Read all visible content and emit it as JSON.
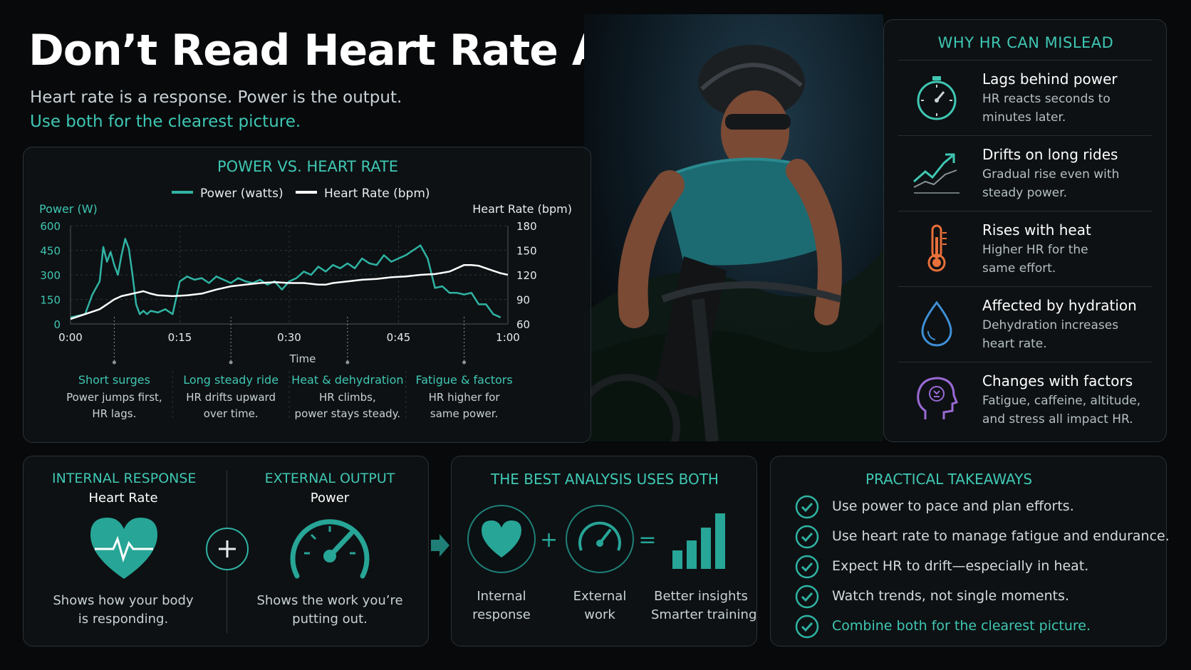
{
  "header": {
    "title": "Don’t Read Heart Rate Alone",
    "subtitle1": "Heart rate is a response. Power is the output.",
    "subtitle2": "Use both for the clearest picture."
  },
  "colors": {
    "accent": "#3fc7b4",
    "power_line": "#2fb3a4",
    "hr_line": "#ffffff",
    "heat": "#e8703a",
    "hydration": "#3f8fd6",
    "factors": "#9a6ad6"
  },
  "chart_data": {
    "type": "line",
    "title": "POWER VS. HEART RATE",
    "xlabel": "Time",
    "ylabel_left": "Power (W)",
    "ylabel_right": "Heart Rate (bpm)",
    "x_ticks": [
      "0:00",
      "0:15",
      "0:30",
      "0:45",
      "1:00"
    ],
    "y_left_ticks": [
      "600",
      "450",
      "300",
      "150",
      "0"
    ],
    "y_right_ticks": [
      "180",
      "150",
      "120",
      "90",
      "60"
    ],
    "ylim_left": [
      0,
      600
    ],
    "ylim_right": [
      60,
      180
    ],
    "xlim": [
      0,
      60
    ],
    "legend_placement": "top-center",
    "series": [
      {
        "name": "Power (watts)",
        "axis": "left",
        "x": [
          0,
          2,
          3,
          4,
          4.5,
          5,
          5.5,
          6,
          6.5,
          7,
          7.5,
          8,
          8.5,
          9,
          9.5,
          10,
          10.5,
          11,
          12,
          13,
          14,
          15,
          16,
          17,
          18,
          19,
          20,
          21,
          22,
          23,
          24,
          25,
          26,
          27,
          28,
          29,
          30,
          31,
          32,
          33,
          34,
          35,
          36,
          37,
          38,
          39,
          40,
          41,
          42,
          43,
          44,
          45,
          46,
          47,
          48,
          49,
          50,
          51,
          52,
          53,
          54,
          55,
          56,
          57,
          58,
          59
        ],
        "values": [
          40,
          60,
          180,
          260,
          470,
          380,
          440,
          360,
          300,
          420,
          520,
          460,
          300,
          120,
          60,
          80,
          60,
          80,
          70,
          90,
          60,
          260,
          290,
          270,
          280,
          250,
          290,
          270,
          250,
          280,
          260,
          250,
          270,
          240,
          260,
          210,
          260,
          280,
          320,
          300,
          350,
          320,
          360,
          340,
          370,
          340,
          400,
          370,
          360,
          420,
          380,
          400,
          420,
          450,
          480,
          400,
          220,
          230,
          190,
          190,
          180,
          190,
          120,
          120,
          60,
          40
        ]
      },
      {
        "name": "Heart Rate (bpm)",
        "axis": "right",
        "x": [
          0,
          2,
          4,
          5,
          6,
          7,
          8,
          9,
          10,
          11,
          12,
          14,
          16,
          18,
          20,
          22,
          24,
          26,
          28,
          30,
          32,
          34,
          35,
          36,
          38,
          40,
          42,
          44,
          46,
          48,
          50,
          52,
          53,
          54,
          55,
          56,
          57,
          58,
          59,
          60
        ],
        "values": [
          66,
          72,
          78,
          84,
          90,
          94,
          96,
          98,
          100,
          97,
          95,
          94,
          95,
          97,
          102,
          106,
          108,
          110,
          111,
          110,
          110,
          108,
          108,
          110,
          112,
          114,
          115,
          117,
          118,
          120,
          121,
          124,
          128,
          132,
          132,
          131,
          128,
          125,
          122,
          120
        ]
      }
    ],
    "annotations": [
      {
        "x": 6,
        "title": "Short surges",
        "line1": "Power jumps first,",
        "line2": "HR lags."
      },
      {
        "x": 22,
        "title": "Long steady ride",
        "line1": "HR drifts upward",
        "line2": "over time."
      },
      {
        "x": 38,
        "title": "Heat & dehydration",
        "line1": "HR climbs,",
        "line2": "power stays steady."
      },
      {
        "x": 54,
        "title": "Fatigue & factors",
        "line1": "HR higher for",
        "line2": "same power."
      }
    ]
  },
  "hr_panel": {
    "title": "WHY HR CAN MISLEAD",
    "items": [
      {
        "icon": "stopwatch-icon",
        "heading": "Lags behind power",
        "line1": "HR reacts seconds to",
        "line2": "minutes later."
      },
      {
        "icon": "trend-up-icon",
        "heading": "Drifts on long rides",
        "line1": "Gradual rise even with",
        "line2": "steady power."
      },
      {
        "icon": "thermometer-icon",
        "heading": "Rises with heat",
        "line1": "Higher HR for the",
        "line2": "same effort."
      },
      {
        "icon": "water-drop-icon",
        "heading": "Affected by hydration",
        "line1": "Dehydration increases",
        "line2": "heart rate."
      },
      {
        "icon": "head-brain-icon",
        "heading": "Changes with factors",
        "line1": "Fatigue, caffeine, altitude,",
        "line2": "and stress all impact HR."
      }
    ]
  },
  "io_panel": {
    "internal_title": "INTERNAL RESPONSE",
    "internal_sub": "Heart Rate",
    "internal_line1": "Shows how your body",
    "internal_line2": "is responding.",
    "external_title": "EXTERNAL OUTPUT",
    "external_sub": "Power",
    "external_line1": "Shows the work you’re",
    "external_line2": "putting out."
  },
  "both_panel": {
    "title": "THE BEST ANALYSIS USES BOTH",
    "col1_line1": "Internal",
    "col1_line2": "response",
    "col2_line1": "External",
    "col2_line2": "work",
    "col3_line1": "Better insights",
    "col3_line2": "Smarter training",
    "plus": "+",
    "equals": "="
  },
  "takeaways": {
    "title": "PRACTICAL TAKEAWAYS",
    "items": [
      "Use power to pace and plan efforts.",
      "Use heart rate to manage fatigue and endurance.",
      "Expect HR to drift—especially in heat.",
      "Watch trends, not single moments.",
      "Combine both for the clearest picture."
    ]
  }
}
